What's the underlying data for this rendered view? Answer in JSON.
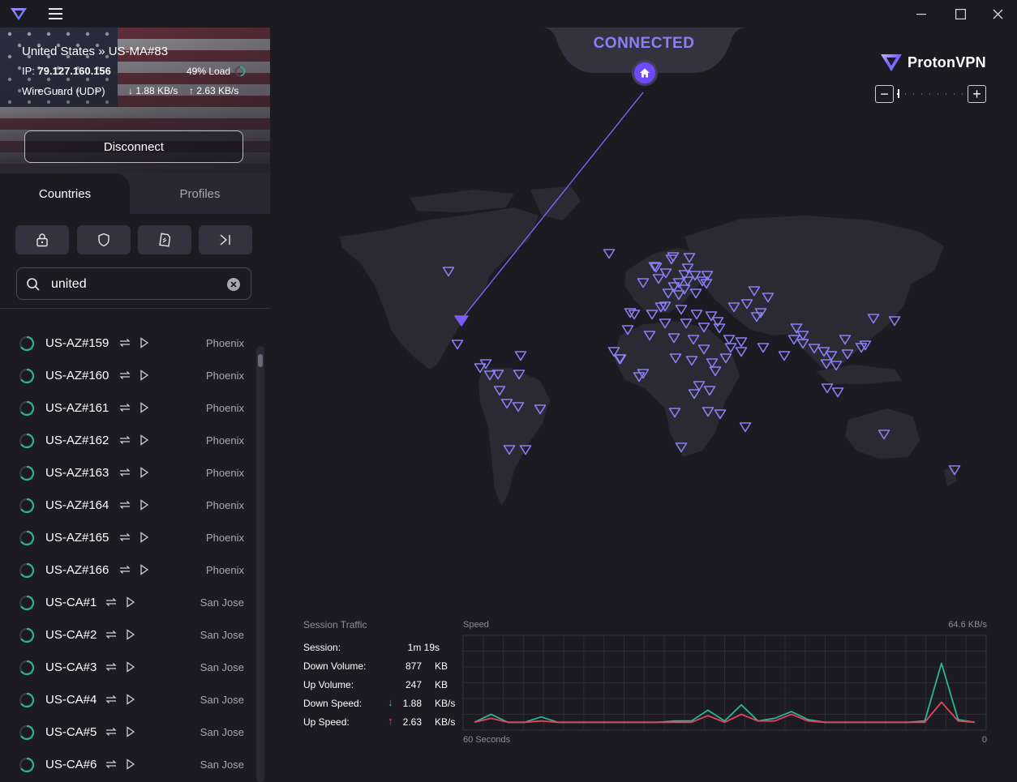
{
  "window": {
    "app_name": "ProtonVPN"
  },
  "connection": {
    "location": "United States » US-MA#83",
    "ip_label": "IP:",
    "ip_value": "79.127.160.156",
    "load": "49% Load",
    "protocol": "WireGuard (UDP)",
    "download_speed": "1.88 KB/s",
    "upload_speed": "2.63 KB/s",
    "disconnect_label": "Disconnect",
    "status": "CONNECTED"
  },
  "tabs": {
    "countries": "Countries",
    "profiles": "Profiles"
  },
  "search": {
    "value": "united"
  },
  "servers": [
    {
      "name": "US-AZ#159",
      "city": "Phoenix"
    },
    {
      "name": "US-AZ#160",
      "city": "Phoenix"
    },
    {
      "name": "US-AZ#161",
      "city": "Phoenix"
    },
    {
      "name": "US-AZ#162",
      "city": "Phoenix"
    },
    {
      "name": "US-AZ#163",
      "city": "Phoenix"
    },
    {
      "name": "US-AZ#164",
      "city": "Phoenix"
    },
    {
      "name": "US-AZ#165",
      "city": "Phoenix"
    },
    {
      "name": "US-AZ#166",
      "city": "Phoenix"
    },
    {
      "name": "US-CA#1",
      "city": "San Jose"
    },
    {
      "name": "US-CA#2",
      "city": "San Jose"
    },
    {
      "name": "US-CA#3",
      "city": "San Jose"
    },
    {
      "name": "US-CA#4",
      "city": "San Jose"
    },
    {
      "name": "US-CA#5",
      "city": "San Jose"
    },
    {
      "name": "US-CA#6",
      "city": "San Jose"
    }
  ],
  "brand": {
    "name": "ProtonVPN"
  },
  "traffic": {
    "title": "Session Traffic",
    "session_label": "Session:",
    "session_value": "1m 19s",
    "down_volume_label": "Down Volume:",
    "down_volume_value": "877",
    "down_volume_unit": "KB",
    "up_volume_label": "Up Volume:",
    "up_volume_value": "247",
    "up_volume_unit": "KB",
    "down_speed_label": "Down Speed:",
    "down_speed_value": "1.88",
    "down_speed_unit": "KB/s",
    "up_speed_label": "Up Speed:",
    "up_speed_value": "2.63",
    "up_speed_unit": "KB/s"
  },
  "chart_data": {
    "type": "line",
    "title": "Speed",
    "ymax_label": "64.6 KB/s",
    "xlabel_left": "60 Seconds",
    "xlabel_right": "0",
    "ylim": [
      0,
      64.6
    ],
    "x": [
      60,
      58,
      56,
      54,
      52,
      50,
      48,
      46,
      44,
      42,
      40,
      38,
      36,
      34,
      32,
      30,
      28,
      26,
      24,
      22,
      20,
      18,
      16,
      14,
      12,
      10,
      8,
      6,
      4,
      2,
      0
    ],
    "series": [
      {
        "name": "Down",
        "color": "#2bb592",
        "values": [
          1,
          7,
          1,
          1,
          5,
          1,
          1,
          1,
          1,
          1,
          1,
          1,
          2,
          2,
          10,
          2,
          14,
          2,
          4,
          9,
          3,
          1,
          1,
          1,
          1,
          1,
          1,
          2,
          45,
          3,
          1
        ]
      },
      {
        "name": "Up",
        "color": "#e0445f",
        "values": [
          1,
          4,
          1,
          1,
          2,
          1,
          1,
          1,
          1,
          1,
          1,
          1,
          1,
          1,
          6,
          1,
          7,
          2,
          2,
          7,
          2,
          1,
          1,
          1,
          1,
          1,
          1,
          1,
          16,
          2,
          1
        ]
      }
    ]
  },
  "colors": {
    "accent": "#6d4aff",
    "status": "#8b7ff6",
    "down": "#2bb592",
    "up": "#e0445f"
  }
}
